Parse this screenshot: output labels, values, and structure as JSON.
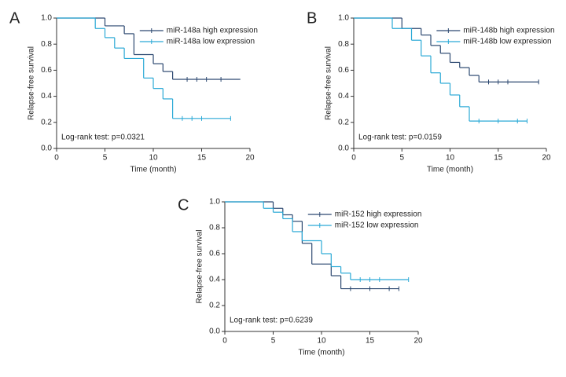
{
  "chart_data": [
    {
      "type": "line",
      "step": true,
      "panel": "A",
      "xlabel": "Time (month)",
      "ylabel": "Relapse-free survival",
      "annotation": "Log-rank test: p=0.0321",
      "xlim": [
        0,
        20
      ],
      "xticks": [
        0,
        5,
        10,
        15,
        20
      ],
      "ylim": [
        0,
        1
      ],
      "yticks": [
        {
          "value": 0,
          "label": "0.0"
        },
        {
          "value": 0.2,
          "label": "0.2"
        },
        {
          "value": 0.4,
          "label": "0.4"
        },
        {
          "value": 0.6,
          "label": "0.6"
        },
        {
          "value": 0.8,
          "label": "0.8"
        },
        {
          "value": 1,
          "label": "1.0"
        }
      ],
      "legend": "upper right",
      "series": [
        {
          "name": "miR-148a high expression",
          "color": "#2c4870",
          "x": [
            0,
            5,
            7,
            8,
            10,
            11,
            12,
            19
          ],
          "values": [
            1,
            0.94,
            0.88,
            0.72,
            0.65,
            0.59,
            0.53,
            0.53
          ],
          "censor_x": [
            13.5,
            14.5,
            15.5,
            17
          ]
        },
        {
          "name": "miR-148a low expression",
          "color": "#2aa9d6",
          "x": [
            0,
            4,
            5,
            6,
            7,
            9,
            10,
            11,
            12,
            18
          ],
          "values": [
            1,
            0.92,
            0.85,
            0.77,
            0.69,
            0.54,
            0.46,
            0.38,
            0.23,
            0.23
          ],
          "censor_x": [
            13,
            14,
            15,
            18
          ]
        }
      ]
    },
    {
      "type": "line",
      "step": true,
      "panel": "B",
      "xlabel": "Time (month)",
      "ylabel": "Relapse-free survival",
      "annotation": "Log-rank test: p=0.0159",
      "xlim": [
        0,
        20
      ],
      "xticks": [
        0,
        5,
        10,
        15,
        20
      ],
      "ylim": [
        0,
        1
      ],
      "yticks": [
        {
          "value": 0,
          "label": "0.0"
        },
        {
          "value": 0.2,
          "label": "0.2"
        },
        {
          "value": 0.4,
          "label": "0.4"
        },
        {
          "value": 0.6,
          "label": "0.6"
        },
        {
          "value": 0.8,
          "label": "0.8"
        },
        {
          "value": 1,
          "label": "1.0"
        }
      ],
      "legend": "upper right",
      "series": [
        {
          "name": "miR-148b high expression",
          "color": "#2c4870",
          "x": [
            0,
            5,
            7,
            8,
            9,
            10,
            11,
            12,
            13,
            19.2
          ],
          "values": [
            1,
            0.92,
            0.87,
            0.79,
            0.73,
            0.66,
            0.62,
            0.56,
            0.51,
            0.51
          ],
          "censor_x": [
            14,
            15,
            16,
            19.2
          ]
        },
        {
          "name": "miR-148b low expression",
          "color": "#2aa9d6",
          "x": [
            0,
            4,
            6,
            7,
            8,
            9,
            10,
            11,
            12,
            18
          ],
          "values": [
            1,
            0.92,
            0.83,
            0.71,
            0.58,
            0.5,
            0.41,
            0.32,
            0.21,
            0.21
          ],
          "censor_x": [
            13,
            15,
            17,
            18
          ]
        }
      ]
    },
    {
      "type": "line",
      "step": true,
      "panel": "C",
      "xlabel": "Time (month)",
      "ylabel": "Relapse-free survival",
      "annotation": "Log-rank test: p=0.6239",
      "xlim": [
        0,
        20
      ],
      "xticks": [
        0,
        5,
        10,
        15,
        20
      ],
      "ylim": [
        0,
        1
      ],
      "yticks": [
        {
          "value": 0,
          "label": "0.0"
        },
        {
          "value": 0.2,
          "label": "0.2"
        },
        {
          "value": 0.4,
          "label": "0.4"
        },
        {
          "value": 0.6,
          "label": "0.6"
        },
        {
          "value": 0.8,
          "label": "0.8"
        },
        {
          "value": 1,
          "label": "1.0"
        }
      ],
      "legend": "upper right",
      "series": [
        {
          "name": "miR-152 high expression",
          "color": "#2c4870",
          "x": [
            0,
            5,
            6,
            7,
            8,
            9,
            11,
            12,
            18
          ],
          "values": [
            1,
            0.95,
            0.9,
            0.85,
            0.68,
            0.52,
            0.43,
            0.33,
            0.33
          ],
          "censor_x": [
            13,
            15,
            17,
            18
          ]
        },
        {
          "name": "miR-152 low expression",
          "color": "#2aa9d6",
          "x": [
            0,
            4,
            5,
            6,
            7,
            8,
            10,
            11,
            12,
            13,
            19
          ],
          "values": [
            1,
            0.95,
            0.92,
            0.87,
            0.77,
            0.7,
            0.6,
            0.5,
            0.45,
            0.4,
            0.4
          ],
          "censor_x": [
            14,
            15,
            16,
            19
          ]
        }
      ]
    }
  ]
}
